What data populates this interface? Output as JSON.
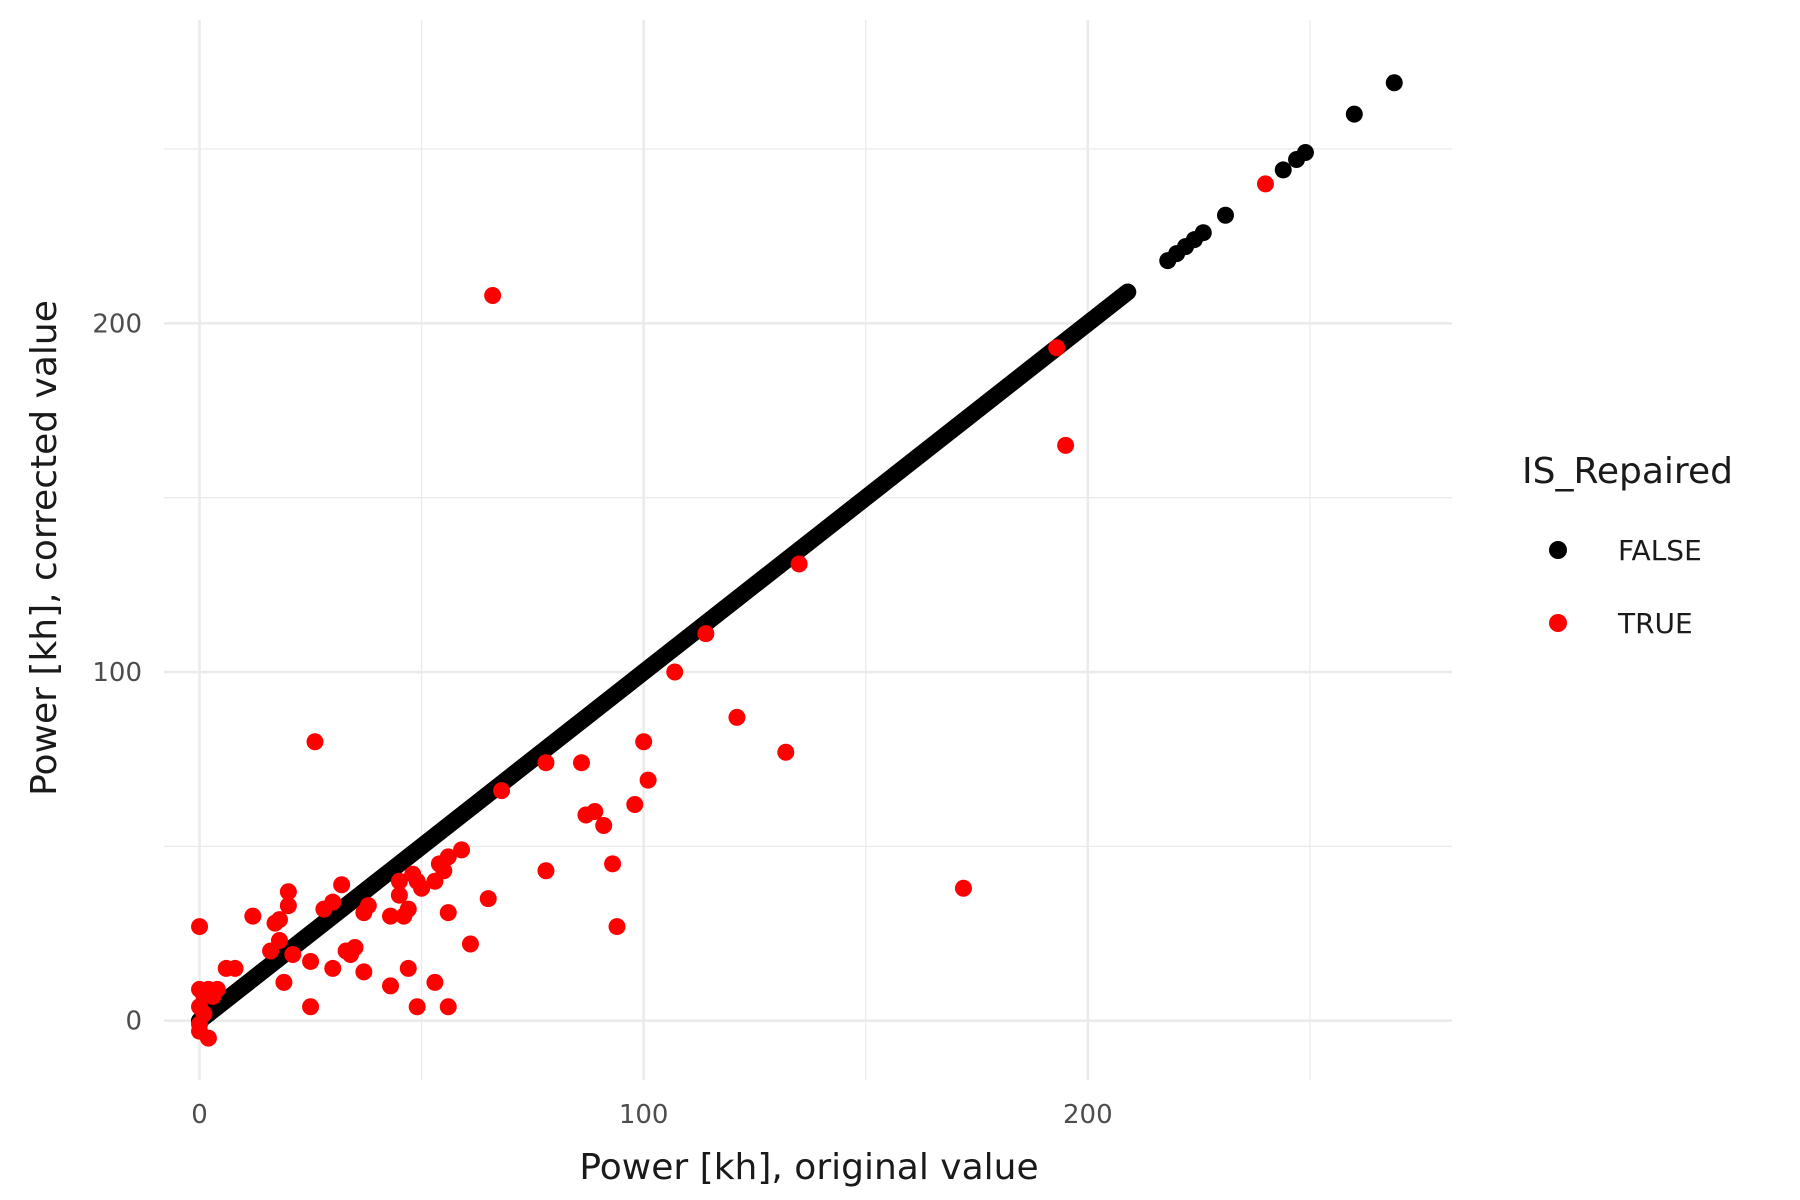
{
  "chart_data": {
    "type": "scatter",
    "xlabel": "Power [kh], original value",
    "ylabel": "Power [kh], corrected value",
    "xlim": [
      -8,
      282
    ],
    "ylim": [
      -17,
      287
    ],
    "x_ticks": [
      0,
      100,
      200
    ],
    "y_ticks": [
      0,
      100,
      200
    ],
    "x_minor": [
      50,
      150,
      250
    ],
    "y_minor": [
      50,
      150,
      250
    ],
    "grid": true,
    "legend": {
      "title": "IS_Repaired",
      "placement": "right",
      "entries": [
        {
          "label": "FALSE",
          "color": "#000000"
        },
        {
          "label": "TRUE",
          "color": "#ff0000"
        }
      ]
    },
    "series": [
      {
        "name": "FALSE",
        "color": "#000000",
        "line_segment": {
          "from": 0,
          "to": 209
        },
        "points": [
          [
            0,
            0
          ],
          [
            218,
            218
          ],
          [
            220,
            220
          ],
          [
            222,
            222
          ],
          [
            224,
            224
          ],
          [
            226,
            226
          ],
          [
            231,
            231
          ],
          [
            244,
            244
          ],
          [
            247,
            247
          ],
          [
            249,
            249
          ],
          [
            260,
            260
          ],
          [
            269,
            269
          ]
        ]
      },
      {
        "name": "TRUE",
        "color": "#ff0000",
        "points": [
          [
            66,
            208
          ],
          [
            240,
            240
          ],
          [
            193,
            193
          ],
          [
            195,
            165
          ],
          [
            135,
            131
          ],
          [
            114,
            111
          ],
          [
            107,
            100
          ],
          [
            121,
            87
          ],
          [
            132,
            77
          ],
          [
            100,
            80
          ],
          [
            101,
            69
          ],
          [
            98,
            62
          ],
          [
            86,
            74
          ],
          [
            87,
            59
          ],
          [
            89,
            60
          ],
          [
            91,
            56
          ],
          [
            93,
            45
          ],
          [
            94,
            27
          ],
          [
            172,
            38
          ],
          [
            78,
            74
          ],
          [
            78,
            43
          ],
          [
            68,
            66
          ],
          [
            65,
            35
          ],
          [
            61,
            22
          ],
          [
            59,
            49
          ],
          [
            56,
            47
          ],
          [
            55,
            43
          ],
          [
            56,
            31
          ],
          [
            56,
            4
          ],
          [
            53,
            40
          ],
          [
            54,
            45
          ],
          [
            50,
            38
          ],
          [
            48,
            42
          ],
          [
            49,
            40
          ],
          [
            46,
            30
          ],
          [
            47,
            32
          ],
          [
            47,
            15
          ],
          [
            45,
            36
          ],
          [
            45,
            40
          ],
          [
            43,
            30
          ],
          [
            43,
            10
          ],
          [
            49,
            4
          ],
          [
            53,
            11
          ],
          [
            37,
            14
          ],
          [
            38,
            33
          ],
          [
            37,
            31
          ],
          [
            34,
            19
          ],
          [
            35,
            21
          ],
          [
            33,
            20
          ],
          [
            32,
            39
          ],
          [
            30,
            34
          ],
          [
            28,
            32
          ],
          [
            30,
            15
          ],
          [
            26,
            80
          ],
          [
            25,
            17
          ],
          [
            25,
            4
          ],
          [
            21,
            19
          ],
          [
            20,
            33
          ],
          [
            20,
            37
          ],
          [
            18,
            29
          ],
          [
            17,
            28
          ],
          [
            18,
            23
          ],
          [
            16,
            20
          ],
          [
            19,
            11
          ],
          [
            12,
            30
          ],
          [
            6,
            15
          ],
          [
            8,
            15
          ],
          [
            0,
            27
          ],
          [
            0,
            9
          ],
          [
            1,
            7
          ],
          [
            2,
            9
          ],
          [
            0,
            4
          ],
          [
            1,
            2
          ],
          [
            0,
            -1
          ],
          [
            0,
            -3
          ],
          [
            2,
            -5
          ],
          [
            3,
            7
          ],
          [
            4,
            9
          ]
        ]
      }
    ]
  }
}
